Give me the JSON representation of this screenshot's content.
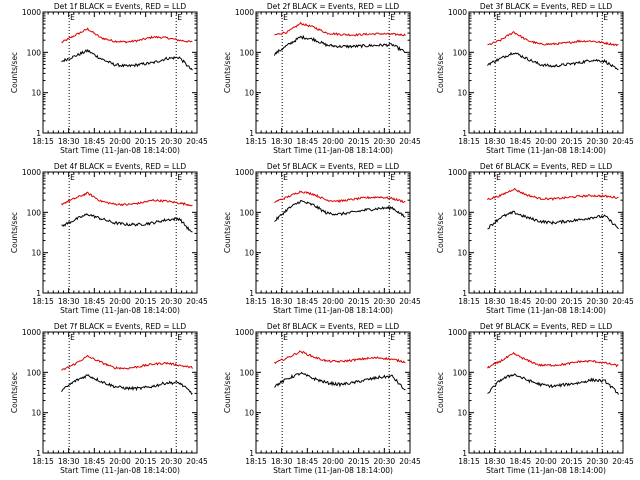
{
  "x_tick_labels": [
    "18:15",
    "18:30",
    "18:45",
    "20:00",
    "20:15",
    "20:30",
    "20:45"
  ],
  "y_tick_labels": [
    "1",
    "10",
    "100",
    "1000"
  ],
  "panel_marker": "E",
  "colors": {
    "events": "#000000",
    "lld": "#dd0000",
    "axes": "#000000",
    "background": "#ffffff"
  },
  "chart_data": [
    {
      "type": "line",
      "title": "Det 1f BLACK = Events, RED = LLD",
      "xlabel": "Start Time (11-Jan-08 18:14:00)",
      "ylabel": "Counts/sec",
      "yscale": "log",
      "ylim": [
        1,
        1000
      ],
      "series": [
        {
          "key": "red",
          "values": [
            175,
            260,
            380,
            230,
            190,
            180,
            200,
            240,
            230,
            200,
            180
          ]
        },
        {
          "key": "black",
          "values": [
            60,
            80,
            110,
            70,
            50,
            45,
            50,
            55,
            70,
            75,
            35
          ]
        }
      ]
    },
    {
      "type": "line",
      "title": "Det 2f BLACK = Events, RED = LLD",
      "xlabel": "Start Time (11-Jan-08 18:14:00)",
      "ylabel": "Counts/sec",
      "yscale": "log",
      "ylim": [
        1,
        1000
      ],
      "series": [
        {
          "key": "red",
          "values": [
            270,
            320,
            520,
            420,
            300,
            280,
            270,
            280,
            290,
            280,
            270
          ]
        },
        {
          "key": "black",
          "values": [
            90,
            150,
            240,
            210,
            150,
            140,
            140,
            145,
            150,
            155,
            100
          ]
        }
      ]
    },
    {
      "type": "line",
      "title": "Det 3f BLACK = Events, RED = LLD",
      "xlabel": "Start Time (11-Jan-08 18:14:00)",
      "ylabel": "Counts/sec",
      "yscale": "log",
      "ylim": [
        1,
        1000
      ],
      "series": [
        {
          "key": "red",
          "values": [
            150,
            200,
            320,
            200,
            160,
            160,
            170,
            190,
            190,
            170,
            150
          ]
        },
        {
          "key": "black",
          "values": [
            50,
            70,
            100,
            70,
            50,
            45,
            50,
            55,
            65,
            60,
            35
          ]
        }
      ]
    },
    {
      "type": "line",
      "title": "Det 4f BLACK = Events, RED = LLD",
      "xlabel": "Start Time (11-Jan-08 18:14:00)",
      "ylabel": "Counts/sec",
      "yscale": "log",
      "ylim": [
        1,
        1000
      ],
      "series": [
        {
          "key": "red",
          "values": [
            160,
            220,
            300,
            190,
            160,
            155,
            170,
            200,
            190,
            170,
            150
          ]
        },
        {
          "key": "black",
          "values": [
            45,
            65,
            90,
            70,
            55,
            50,
            50,
            55,
            65,
            70,
            30
          ]
        }
      ]
    },
    {
      "type": "line",
      "title": "Det 5f BLACK = Events, RED = LLD",
      "xlabel": "Start Time (11-Jan-08 18:14:00)",
      "ylabel": "Counts/sec",
      "yscale": "log",
      "ylim": [
        1,
        1000
      ],
      "series": [
        {
          "key": "red",
          "values": [
            180,
            240,
            330,
            280,
            200,
            190,
            210,
            230,
            240,
            220,
            180
          ]
        },
        {
          "key": "black",
          "values": [
            60,
            120,
            190,
            150,
            95,
            90,
            100,
            115,
            125,
            130,
            75
          ]
        }
      ]
    },
    {
      "type": "line",
      "title": "Det 6f BLACK = Events, RED = LLD",
      "xlabel": "Start Time (11-Jan-08 18:14:00)",
      "ylabel": "Counts/sec",
      "yscale": "log",
      "ylim": [
        1,
        1000
      ],
      "series": [
        {
          "key": "red",
          "values": [
            210,
            260,
            380,
            270,
            220,
            215,
            230,
            250,
            260,
            250,
            230
          ]
        },
        {
          "key": "black",
          "values": [
            40,
            75,
            100,
            75,
            60,
            55,
            60,
            65,
            75,
            80,
            40
          ]
        }
      ]
    },
    {
      "type": "line",
      "title": "Det 7f BLACK = Events, RED = LLD",
      "xlabel": "Start Time (11-Jan-08 18:14:00)",
      "ylabel": "Counts/sec",
      "yscale": "log",
      "ylim": [
        1,
        1000
      ],
      "series": [
        {
          "key": "red",
          "values": [
            110,
            160,
            250,
            180,
            130,
            125,
            140,
            160,
            170,
            150,
            130
          ]
        },
        {
          "key": "black",
          "values": [
            35,
            60,
            85,
            60,
            45,
            40,
            40,
            45,
            55,
            55,
            30
          ]
        }
      ]
    },
    {
      "type": "line",
      "title": "Det 8f BLACK = Events, RED = LLD",
      "xlabel": "Start Time (11-Jan-08 18:14:00)",
      "ylabel": "Counts/sec",
      "yscale": "log",
      "ylim": [
        1,
        1000
      ],
      "series": [
        {
          "key": "red",
          "values": [
            170,
            230,
            330,
            240,
            190,
            185,
            200,
            220,
            230,
            210,
            180
          ]
        },
        {
          "key": "black",
          "values": [
            45,
            70,
            95,
            70,
            55,
            50,
            55,
            65,
            75,
            80,
            35
          ]
        }
      ]
    },
    {
      "type": "line",
      "title": "Det 9f BLACK = Events, RED = LLD",
      "xlabel": "Start Time (11-Jan-08 18:14:00)",
      "ylabel": "Counts/sec",
      "yscale": "log",
      "ylim": [
        1,
        1000
      ],
      "series": [
        {
          "key": "red",
          "values": [
            130,
            190,
            290,
            200,
            150,
            150,
            160,
            185,
            190,
            170,
            145
          ]
        },
        {
          "key": "black",
          "values": [
            30,
            65,
            90,
            65,
            50,
            45,
            50,
            55,
            65,
            60,
            30
          ]
        }
      ]
    }
  ]
}
